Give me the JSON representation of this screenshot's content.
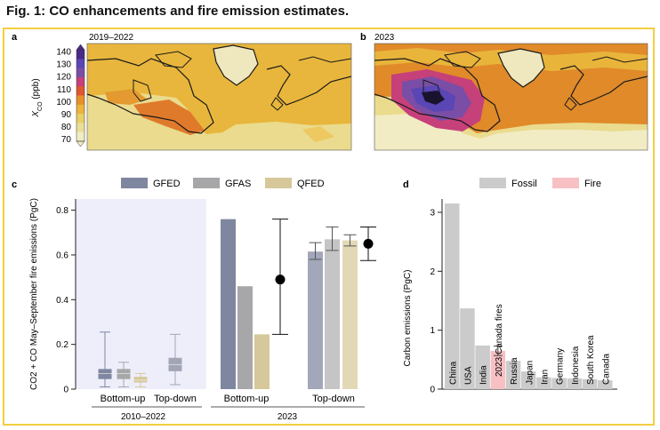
{
  "figure": {
    "title": "Fig. 1: CO enhancements and fire emission estimates."
  },
  "panel_a": {
    "letter": "a",
    "title": "2019–2022"
  },
  "panel_b": {
    "letter": "b",
    "title": "2023"
  },
  "colorbar": {
    "ylabel_main": "X",
    "ylabel_sub": "CO",
    "ylabel_unit": " (ppb)",
    "ticks": [
      "140",
      "130",
      "120",
      "110",
      "100",
      "90",
      "80",
      "70"
    ],
    "colors": [
      "#4a2a86",
      "#5a46b4",
      "#7a4ea6",
      "#c6407a",
      "#e0562e",
      "#e89028",
      "#eab53a",
      "#e8d062",
      "#eadf96",
      "#f1ecc4"
    ]
  },
  "panel_c": {
    "letter": "c"
  },
  "panel_d": {
    "letter": "d"
  },
  "chart_data": [
    {
      "type": "bar",
      "panel": "c",
      "ylabel": "CO2 + CO May–September fire emissions (PgC)",
      "ylim": [
        0,
        0.85
      ],
      "yticks": [
        "0",
        "0.2",
        "0.4",
        "0.6",
        "0.8"
      ],
      "legend": [
        {
          "name": "GFED",
          "color": "#7f86a0"
        },
        {
          "name": "GFAS",
          "color": "#a7a7a9"
        },
        {
          "name": "QFED",
          "color": "#d6c89a"
        }
      ],
      "groups": [
        "Bottom-up",
        "Top-down",
        "Bottom-up",
        "Top-down"
      ],
      "periods": [
        "2010–2022",
        "2023"
      ],
      "boxplots_2010_2022": [
        {
          "group": "Bottom-up",
          "series": "GFED",
          "min": 0.01,
          "q1": 0.045,
          "median": 0.07,
          "q3": 0.09,
          "max": 0.255
        },
        {
          "group": "Bottom-up",
          "series": "GFAS",
          "min": 0.01,
          "q1": 0.045,
          "median": 0.07,
          "q3": 0.09,
          "max": 0.12
        },
        {
          "group": "Bottom-up",
          "series": "QFED",
          "min": 0.01,
          "q1": 0.03,
          "median": 0.04,
          "q3": 0.055,
          "max": 0.07
        },
        {
          "group": "Top-down",
          "series": "Top-down",
          "min": 0.02,
          "q1": 0.08,
          "median": 0.11,
          "q3": 0.14,
          "max": 0.245
        }
      ],
      "bars_2023_bottom_up": [
        {
          "series": "GFED",
          "value": 0.76
        },
        {
          "series": "GFAS",
          "value": 0.46
        },
        {
          "series": "QFED",
          "value": 0.245
        }
      ],
      "mean_2023_bottom_up": {
        "value": 0.49,
        "low": 0.245,
        "high": 0.76
      },
      "bars_2023_top_down": [
        {
          "series": "GFED",
          "value": 0.615,
          "low": 0.58,
          "high": 0.655
        },
        {
          "series": "GFAS",
          "value": 0.67,
          "low": 0.62,
          "high": 0.725
        },
        {
          "series": "QFED",
          "value": 0.665,
          "low": 0.64,
          "high": 0.69
        }
      ],
      "mean_2023_top_down": {
        "value": 0.65,
        "low": 0.575,
        "high": 0.725
      }
    },
    {
      "type": "bar",
      "panel": "d",
      "ylabel": "Carbon emissions (PgC)",
      "ylim": [
        0,
        3.3
      ],
      "yticks": [
        "0",
        "1",
        "2",
        "3"
      ],
      "legend": [
        {
          "name": "Fossil",
          "color": "#cbcbcb"
        },
        {
          "name": "Fire",
          "color": "#f7c1c4"
        }
      ],
      "categories": [
        "China",
        "USA",
        "India",
        "2023 Canada fires",
        "Russia",
        "Japan",
        "Iran",
        "Germany",
        "Indonesia",
        "South Korea",
        "Canada"
      ],
      "kind": [
        "fossil",
        "fossil",
        "fossil",
        "fire",
        "fossil",
        "fossil",
        "fossil",
        "fossil",
        "fossil",
        "fossil",
        "fossil"
      ],
      "values": [
        3.15,
        1.37,
        0.74,
        0.65,
        0.48,
        0.3,
        0.2,
        0.19,
        0.18,
        0.17,
        0.15
      ],
      "fire_error": {
        "low": 0.57,
        "high": 0.73
      }
    }
  ]
}
